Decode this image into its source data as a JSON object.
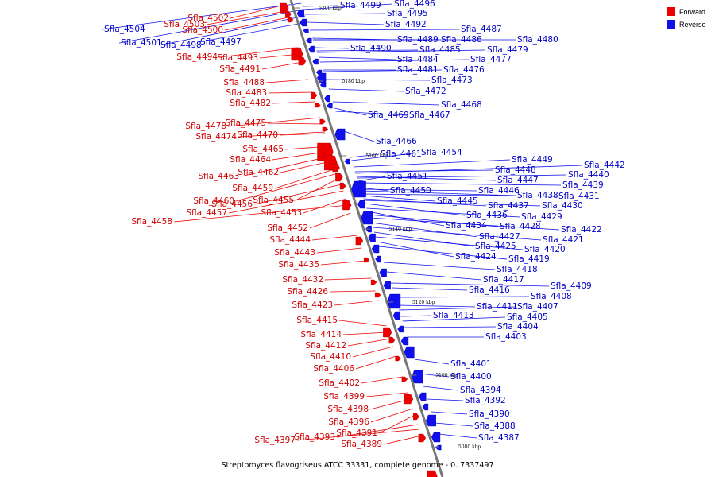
{
  "colors": {
    "forward": "#ee0000",
    "reverse": "#1010ee",
    "forward_text": "#d00000",
    "reverse_text": "#0000c8",
    "axis": "#777777"
  },
  "legend": {
    "forward_label": "Forward",
    "reverse_label": "Reverse"
  },
  "caption": "Streptomyces flavogriseus ATCC 33331, complete genome - 0..7337497",
  "ticks": [
    "5200 kbp",
    "5180 kbp",
    "5160 kbp",
    "5140 kbp",
    "5120 kbp",
    "5100 kbp",
    "5080 kbp"
  ],
  "forward_labels": [
    "Sfla_4502",
    "Sfla_4503",
    "Sfla_4500",
    "Sfla_4494",
    "Sfla_4493",
    "Sfla_4491",
    "Sfla_4488",
    "Sfla_4483",
    "Sfla_4482",
    "Sfla_4478",
    "Sfla_4475",
    "Sfla_4474",
    "Sfla_4470",
    "Sfla_4465",
    "Sfla_4464",
    "Sfla_4463",
    "Sfla_4462",
    "Sfla_4459",
    "Sfla_4460",
    "Sfla_4455",
    "Sfla_4456",
    "Sfla_4457",
    "Sfla_4453",
    "Sfla_4458",
    "Sfla_4452",
    "Sfla_4444",
    "Sfla_4443",
    "Sfla_4435",
    "Sfla_4432",
    "Sfla_4426",
    "Sfla_4423",
    "Sfla_4415",
    "Sfla_4414",
    "Sfla_4412",
    "Sfla_4410",
    "Sfla_4406",
    "Sfla_4402",
    "Sfla_4399",
    "Sfla_4398",
    "Sfla_4396",
    "Sfla_4391",
    "Sfla_4393",
    "Sfla_4397",
    "Sfla_4389"
  ],
  "reverse_labels": [
    "Sfla_4504",
    "Sfla_4501",
    "Sfla_4498",
    "Sfla_4497",
    "Sfla_4499",
    "Sfla_4496",
    "Sfla_4495",
    "Sfla_4492",
    "Sfla_4487",
    "Sfla_4489",
    "Sfla_4486",
    "Sfla_4480",
    "Sfla_4490",
    "Sfla_4485",
    "Sfla_4479",
    "Sfla_4484",
    "Sfla_4477",
    "Sfla_4481",
    "Sfla_4476",
    "Sfla_4473",
    "Sfla_4472",
    "Sfla_4468",
    "Sfla_4469",
    "Sfla_4467",
    "Sfla_4466",
    "Sfla_4461",
    "Sfla_4454",
    "Sfla_4449",
    "Sfla_4448",
    "Sfla_4442",
    "Sfla_4451",
    "Sfla_4447",
    "Sfla_4440",
    "Sfla_4439",
    "Sfla_4450",
    "Sfla_4446",
    "Sfla_4438",
    "Sfla_4431",
    "Sfla_4445",
    "Sfla_4437",
    "Sfla_4430",
    "Sfla_4436",
    "Sfla_4429",
    "Sfla_4434",
    "Sfla_4428",
    "Sfla_4422",
    "Sfla_4427",
    "Sfla_4421",
    "Sfla_4425",
    "Sfla_4420",
    "Sfla_4424",
    "Sfla_4419",
    "Sfla_4418",
    "Sfla_4417",
    "Sfla_4409",
    "Sfla_4416",
    "Sfla_4408",
    "Sfla_4411",
    "Sfla_4407",
    "Sfla_4413",
    "Sfla_4405",
    "Sfla_4404",
    "Sfla_4403",
    "Sfla_4401",
    "Sfla_4400",
    "Sfla_4394",
    "Sfla_4392",
    "Sfla_4390",
    "Sfla_4388",
    "Sfla_4387"
  ]
}
